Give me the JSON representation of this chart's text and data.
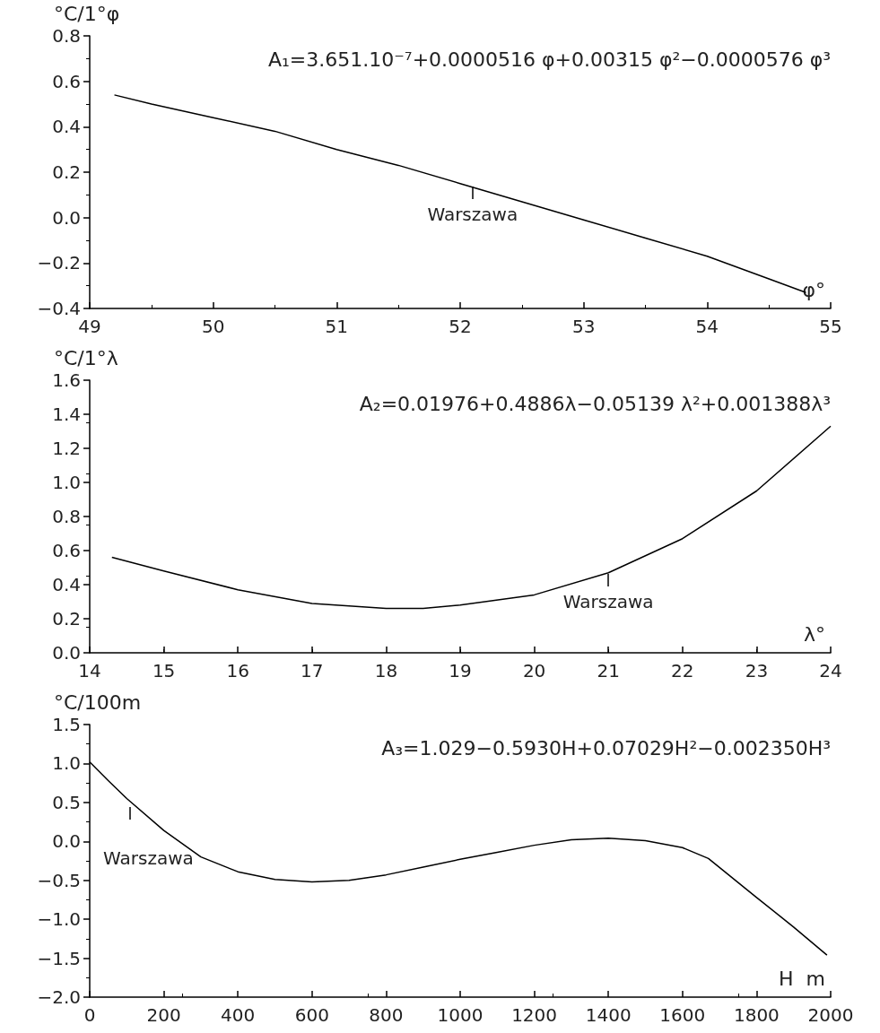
{
  "chart_data": [
    {
      "type": "line",
      "ylabel": "°C/1°φ",
      "xlabel": "φ°",
      "annotations": [
        "A₁=3.651.10⁻⁷+0.0000516 φ+0.00315 φ²−0.0000576 φ³",
        {
          "text": "Warszawa",
          "x": 52.1,
          "y": 0.14
        }
      ],
      "x": [
        49.2,
        49.5,
        50,
        50.5,
        51,
        51.5,
        52,
        52.5,
        53,
        53.5,
        54,
        54.5,
        54.8
      ],
      "series": [
        {
          "color": "#000000",
          "values": [
            0.54,
            0.5,
            0.44,
            0.38,
            0.3,
            0.23,
            0.15,
            0.07,
            -0.01,
            -0.09,
            -0.17,
            -0.27,
            -0.33
          ]
        }
      ],
      "xlim": [
        49,
        55
      ],
      "xticks": [
        49,
        50,
        51,
        52,
        53,
        54,
        55
      ],
      "ylim": [
        -0.4,
        0.8
      ],
      "yticks": [
        {
          "value": -0.4,
          "label": "−0.4"
        },
        {
          "value": -0.2,
          "label": "−0.2"
        },
        {
          "value": 0,
          "label": "0.0"
        },
        0.2,
        0.4,
        0.6,
        0.8
      ],
      "grid": false,
      "marker": "none"
    },
    {
      "type": "line",
      "ylabel": "°C/1°λ",
      "xlabel": "λ°",
      "annotations": [
        "A₂=0.01976+0.4886λ−0.05139 λ²+0.001388λ³",
        {
          "text": "Warszawa",
          "x": 21,
          "y": 0.47
        }
      ],
      "x": [
        14.3,
        15,
        16,
        17,
        18,
        18.5,
        19,
        20,
        21,
        22,
        23,
        24
      ],
      "series": [
        {
          "color": "#000000",
          "values": [
            0.56,
            0.48,
            0.37,
            0.29,
            0.26,
            0.26,
            0.28,
            0.34,
            0.47,
            0.67,
            0.95,
            1.33
          ]
        }
      ],
      "xlim": [
        14,
        24
      ],
      "xticks": [
        14,
        15,
        16,
        17,
        18,
        19,
        20,
        21,
        22,
        23,
        24
      ],
      "ylim": [
        0,
        1.6
      ],
      "yticks": [
        {
          "value": 0,
          "label": "0.0"
        },
        0.2,
        0.4,
        0.6,
        0.8,
        {
          "value": 1,
          "label": "1.0"
        },
        1.2,
        1.4,
        1.6
      ],
      "grid": false,
      "marker": "none"
    },
    {
      "type": "line",
      "ylabel": "°C/100m",
      "xlabel": "H  m",
      "annotations": [
        "A₃=1.029−0.5930H+0.07029H²−0.002350H³",
        {
          "text": "Warszawa",
          "x": 110,
          "y": 0.45
        }
      ],
      "x": [
        0,
        50,
        100,
        200,
        300,
        400,
        500,
        600,
        700,
        800,
        900,
        1000,
        1100,
        1200,
        1300,
        1400,
        1500,
        1600,
        1670,
        1800,
        1900,
        1990
      ],
      "series": [
        {
          "color": "#000000",
          "values": [
            1.02,
            0.78,
            0.55,
            0.14,
            -0.2,
            -0.39,
            -0.49,
            -0.52,
            -0.5,
            -0.43,
            -0.33,
            -0.23,
            -0.14,
            -0.05,
            0.02,
            0.04,
            0.01,
            -0.08,
            -0.22,
            -0.72,
            -1.1,
            -1.46
          ]
        }
      ],
      "xlim": [
        0,
        2000
      ],
      "xticks": [
        0,
        200,
        400,
        600,
        800,
        1000,
        1200,
        1400,
        1600,
        1800,
        2000
      ],
      "ylim": [
        -2,
        1.5
      ],
      "yticks": [
        {
          "value": -2,
          "label": "−2.0"
        },
        {
          "value": -1.5,
          "label": "−1.5"
        },
        {
          "value": -1,
          "label": "−1.0"
        },
        {
          "value": -0.5,
          "label": "−0.5"
        },
        {
          "value": 0,
          "label": "0.0"
        },
        0.5,
        {
          "value": 1,
          "label": "1.0"
        },
        1.5
      ],
      "grid": false,
      "marker": "none"
    }
  ]
}
